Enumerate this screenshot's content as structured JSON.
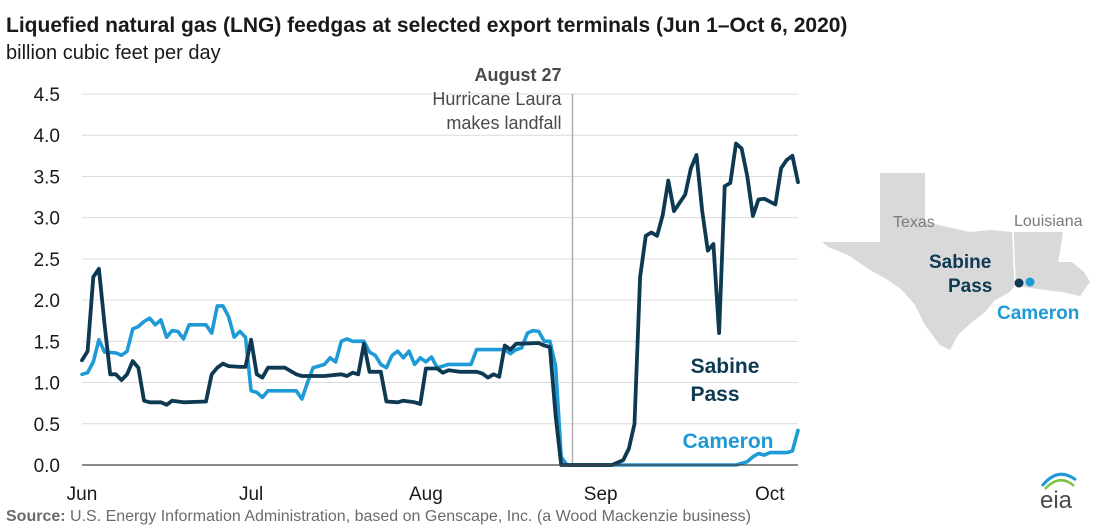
{
  "chart_data": {
    "type": "line",
    "title": "Liquefied natural gas (LNG) feedgas at selected export terminals (Jun 1–Oct 6, 2020)",
    "subtitle": "billion cubic feet per day",
    "x_ticks": [
      "Jun",
      "Jul",
      "Aug",
      "Sep",
      "Oct"
    ],
    "y_ticks": [
      "0.0",
      "0.5",
      "1.0",
      "1.5",
      "2.0",
      "2.5",
      "3.0",
      "3.5",
      "4.0",
      "4.5"
    ],
    "ylim": [
      0,
      4.5
    ],
    "grid": "horizontal",
    "annotation": {
      "date": "2020-08-27",
      "title": "August 27",
      "line1": "Hurricane Laura",
      "line2": "makes landfall"
    },
    "series": [
      {
        "name": "Sabine Pass",
        "label_line1": "Sabine",
        "label_line2": "Pass",
        "color": "#0d3a52",
        "points": [
          [
            "2020-06-01",
            1.27
          ],
          [
            "2020-06-02",
            1.38
          ],
          [
            "2020-06-03",
            2.28
          ],
          [
            "2020-06-04",
            2.38
          ],
          [
            "2020-06-05",
            1.7
          ],
          [
            "2020-06-06",
            1.1
          ],
          [
            "2020-06-07",
            1.1
          ],
          [
            "2020-06-08",
            1.03
          ],
          [
            "2020-06-09",
            1.1
          ],
          [
            "2020-06-10",
            1.26
          ],
          [
            "2020-06-11",
            1.18
          ],
          [
            "2020-06-12",
            0.78
          ],
          [
            "2020-06-13",
            0.76
          ],
          [
            "2020-06-15",
            0.76
          ],
          [
            "2020-06-16",
            0.73
          ],
          [
            "2020-06-17",
            0.78
          ],
          [
            "2020-06-19",
            0.76
          ],
          [
            "2020-06-23",
            0.77
          ],
          [
            "2020-06-24",
            1.1
          ],
          [
            "2020-06-25",
            1.18
          ],
          [
            "2020-06-26",
            1.23
          ],
          [
            "2020-06-27",
            1.2
          ],
          [
            "2020-06-29",
            1.19
          ],
          [
            "2020-06-30",
            1.19
          ],
          [
            "2020-07-01",
            1.52
          ],
          [
            "2020-07-02",
            1.1
          ],
          [
            "2020-07-03",
            1.06
          ],
          [
            "2020-07-04",
            1.18
          ],
          [
            "2020-07-07",
            1.18
          ],
          [
            "2020-07-09",
            1.1
          ],
          [
            "2020-07-10",
            1.08
          ],
          [
            "2020-07-14",
            1.08
          ],
          [
            "2020-07-17",
            1.1
          ],
          [
            "2020-07-18",
            1.08
          ],
          [
            "2020-07-19",
            1.12
          ],
          [
            "2020-07-20",
            1.1
          ],
          [
            "2020-07-21",
            1.47
          ],
          [
            "2020-07-22",
            1.13
          ],
          [
            "2020-07-24",
            1.13
          ],
          [
            "2020-07-25",
            0.77
          ],
          [
            "2020-07-27",
            0.76
          ],
          [
            "2020-07-28",
            0.78
          ],
          [
            "2020-07-30",
            0.76
          ],
          [
            "2020-07-31",
            0.74
          ],
          [
            "2020-08-01",
            1.17
          ],
          [
            "2020-08-03",
            1.17
          ],
          [
            "2020-08-04",
            1.12
          ],
          [
            "2020-08-05",
            1.15
          ],
          [
            "2020-08-07",
            1.13
          ],
          [
            "2020-08-10",
            1.13
          ],
          [
            "2020-08-11",
            1.11
          ],
          [
            "2020-08-12",
            1.06
          ],
          [
            "2020-08-13",
            1.1
          ],
          [
            "2020-08-14",
            1.07
          ],
          [
            "2020-08-15",
            1.45
          ],
          [
            "2020-08-16",
            1.4
          ],
          [
            "2020-08-17",
            1.47
          ],
          [
            "2020-08-21",
            1.48
          ],
          [
            "2020-08-22",
            1.45
          ],
          [
            "2020-08-23",
            1.43
          ],
          [
            "2020-08-24",
            0.6
          ],
          [
            "2020-08-25",
            0.0
          ],
          [
            "2020-09-03",
            0.0
          ],
          [
            "2020-09-05",
            0.06
          ],
          [
            "2020-09-06",
            0.2
          ],
          [
            "2020-09-07",
            0.5
          ],
          [
            "2020-09-08",
            2.28
          ],
          [
            "2020-09-09",
            2.78
          ],
          [
            "2020-09-10",
            2.82
          ],
          [
            "2020-09-11",
            2.78
          ],
          [
            "2020-09-12",
            3.03
          ],
          [
            "2020-09-13",
            3.45
          ],
          [
            "2020-09-14",
            3.08
          ],
          [
            "2020-09-16",
            3.28
          ],
          [
            "2020-09-17",
            3.6
          ],
          [
            "2020-09-18",
            3.76
          ],
          [
            "2020-09-19",
            3.08
          ],
          [
            "2020-09-20",
            2.6
          ],
          [
            "2020-09-21",
            2.68
          ],
          [
            "2020-09-22",
            1.6
          ],
          [
            "2020-09-23",
            3.38
          ],
          [
            "2020-09-24",
            3.42
          ],
          [
            "2020-09-25",
            3.9
          ],
          [
            "2020-09-26",
            3.84
          ],
          [
            "2020-09-27",
            3.5
          ],
          [
            "2020-09-28",
            3.02
          ],
          [
            "2020-09-29",
            3.22
          ],
          [
            "2020-09-30",
            3.23
          ],
          [
            "2020-10-02",
            3.16
          ],
          [
            "2020-10-03",
            3.6
          ],
          [
            "2020-10-04",
            3.7
          ],
          [
            "2020-10-05",
            3.75
          ],
          [
            "2020-10-06",
            3.43
          ]
        ]
      },
      {
        "name": "Cameron",
        "label_line1": "Cameron",
        "color": "#1e9ad6",
        "points": [
          [
            "2020-06-01",
            1.1
          ],
          [
            "2020-06-02",
            1.12
          ],
          [
            "2020-06-03",
            1.25
          ],
          [
            "2020-06-04",
            1.52
          ],
          [
            "2020-06-05",
            1.37
          ],
          [
            "2020-06-07",
            1.36
          ],
          [
            "2020-06-08",
            1.33
          ],
          [
            "2020-06-09",
            1.38
          ],
          [
            "2020-06-10",
            1.65
          ],
          [
            "2020-06-11",
            1.68
          ],
          [
            "2020-06-12",
            1.74
          ],
          [
            "2020-06-13",
            1.78
          ],
          [
            "2020-06-14",
            1.7
          ],
          [
            "2020-06-15",
            1.76
          ],
          [
            "2020-06-16",
            1.55
          ],
          [
            "2020-06-17",
            1.63
          ],
          [
            "2020-06-18",
            1.62
          ],
          [
            "2020-06-19",
            1.53
          ],
          [
            "2020-06-20",
            1.7
          ],
          [
            "2020-06-23",
            1.7
          ],
          [
            "2020-06-24",
            1.6
          ],
          [
            "2020-06-25",
            1.93
          ],
          [
            "2020-06-26",
            1.93
          ],
          [
            "2020-06-27",
            1.8
          ],
          [
            "2020-06-28",
            1.55
          ],
          [
            "2020-06-29",
            1.62
          ],
          [
            "2020-06-30",
            1.55
          ],
          [
            "2020-07-01",
            0.9
          ],
          [
            "2020-07-02",
            0.88
          ],
          [
            "2020-07-03",
            0.82
          ],
          [
            "2020-07-04",
            0.9
          ],
          [
            "2020-07-09",
            0.9
          ],
          [
            "2020-07-10",
            0.8
          ],
          [
            "2020-07-11",
            1.0
          ],
          [
            "2020-07-12",
            1.18
          ],
          [
            "2020-07-13",
            1.2
          ],
          [
            "2020-07-14",
            1.22
          ],
          [
            "2020-07-15",
            1.3
          ],
          [
            "2020-07-16",
            1.25
          ],
          [
            "2020-07-17",
            1.5
          ],
          [
            "2020-07-18",
            1.53
          ],
          [
            "2020-07-19",
            1.5
          ],
          [
            "2020-07-21",
            1.5
          ],
          [
            "2020-07-22",
            1.37
          ],
          [
            "2020-07-23",
            1.33
          ],
          [
            "2020-07-24",
            1.22
          ],
          [
            "2020-07-25",
            1.18
          ],
          [
            "2020-07-26",
            1.33
          ],
          [
            "2020-07-27",
            1.38
          ],
          [
            "2020-07-28",
            1.3
          ],
          [
            "2020-07-29",
            1.38
          ],
          [
            "2020-07-30",
            1.22
          ],
          [
            "2020-07-31",
            1.3
          ],
          [
            "2020-08-01",
            1.25
          ],
          [
            "2020-08-02",
            1.31
          ],
          [
            "2020-08-03",
            1.18
          ],
          [
            "2020-08-04",
            1.2
          ],
          [
            "2020-08-05",
            1.22
          ],
          [
            "2020-08-09",
            1.22
          ],
          [
            "2020-08-10",
            1.4
          ],
          [
            "2020-08-15",
            1.4
          ],
          [
            "2020-08-16",
            1.35
          ],
          [
            "2020-08-17",
            1.4
          ],
          [
            "2020-08-18",
            1.42
          ],
          [
            "2020-08-19",
            1.6
          ],
          [
            "2020-08-20",
            1.63
          ],
          [
            "2020-08-21",
            1.62
          ],
          [
            "2020-08-22",
            1.5
          ],
          [
            "2020-08-23",
            1.5
          ],
          [
            "2020-08-24",
            1.2
          ],
          [
            "2020-08-25",
            0.1
          ],
          [
            "2020-08-26",
            0.0
          ],
          [
            "2020-09-25",
            0.0
          ],
          [
            "2020-09-26",
            0.02
          ],
          [
            "2020-09-27",
            0.04
          ],
          [
            "2020-09-28",
            0.1
          ],
          [
            "2020-09-29",
            0.14
          ],
          [
            "2020-09-30",
            0.12
          ],
          [
            "2020-10-01",
            0.15
          ],
          [
            "2020-10-04",
            0.15
          ],
          [
            "2020-10-05",
            0.17
          ],
          [
            "2020-10-06",
            0.42
          ]
        ]
      }
    ]
  },
  "map": {
    "state_labels": [
      "Texas",
      "Louisiana"
    ],
    "sabine_label_line1": "Sabine",
    "sabine_label_line2": "Pass",
    "cameron_label": "Cameron",
    "fill_color": "#d9d9d9"
  },
  "source": {
    "prefix": "Source:",
    "text": " U.S. Energy Information Administration, based on Genscape, Inc. (a Wood Mackenzie business)"
  },
  "logo": {
    "text": "eia"
  }
}
